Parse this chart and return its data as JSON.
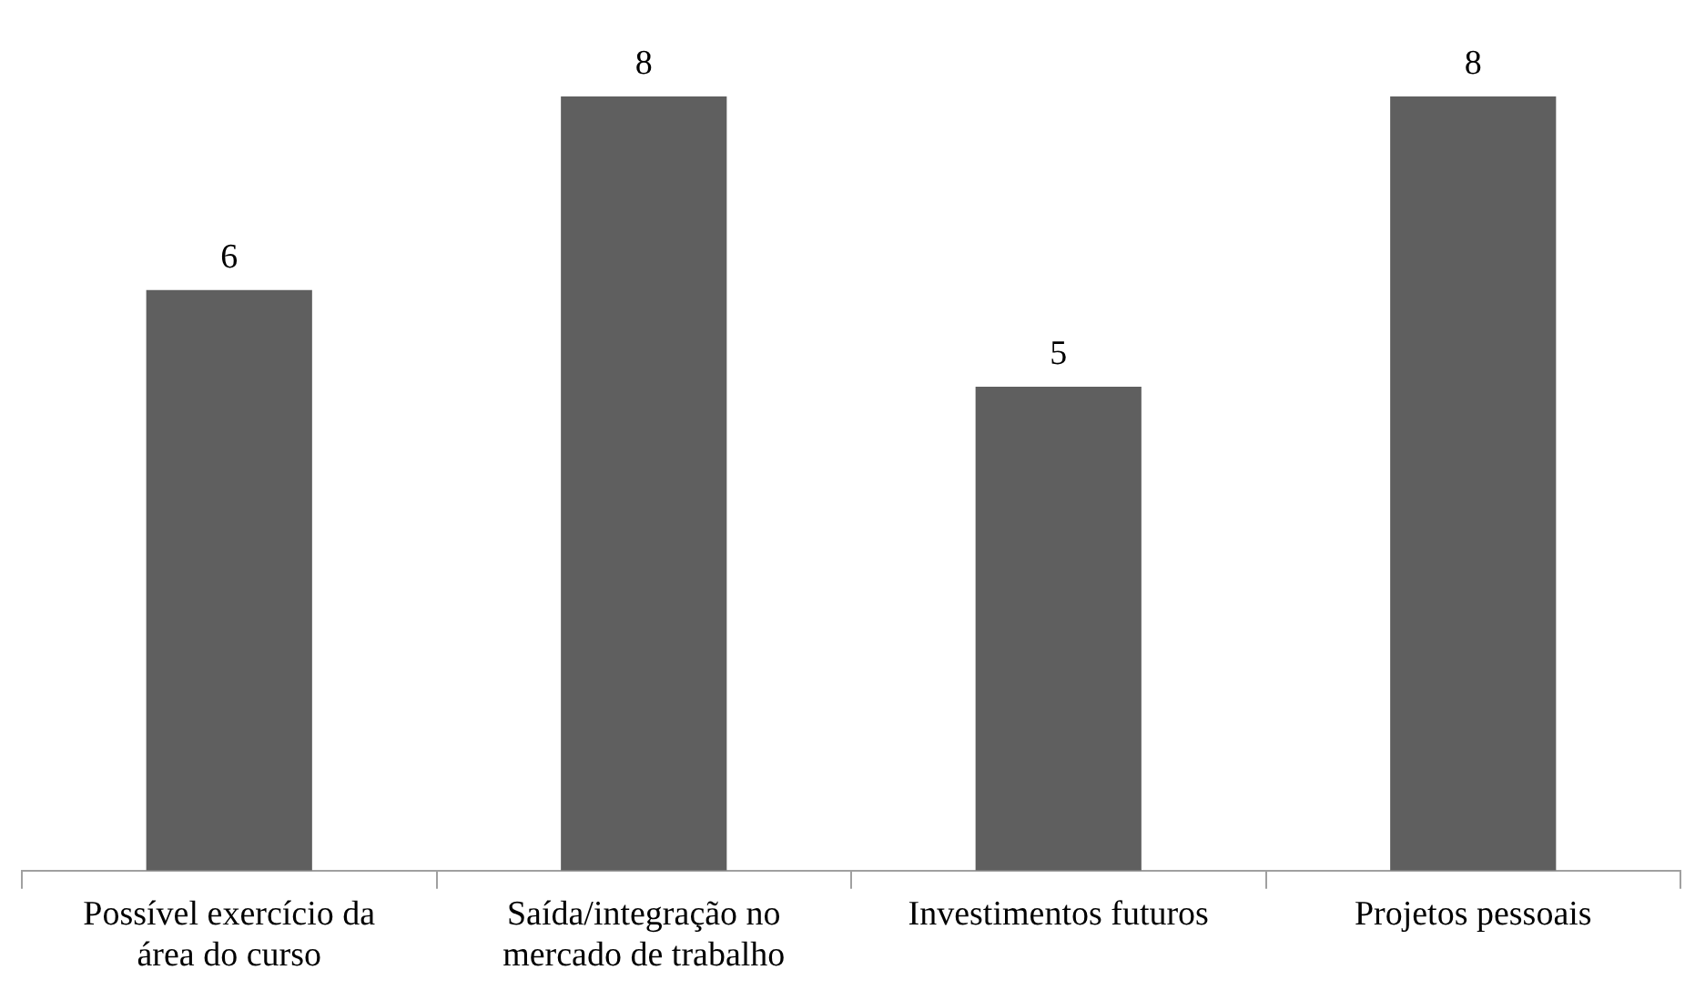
{
  "chart_data": {
    "type": "bar",
    "categories": [
      "Possível exercício da área do curso",
      "Saída/integração no mercado de trabalho",
      "Investimentos futuros",
      "Projetos pessoais"
    ],
    "values": [
      6,
      8,
      5,
      8
    ],
    "color": "#5f5f5f",
    "data_labels": true,
    "grid": false,
    "legend": false
  }
}
